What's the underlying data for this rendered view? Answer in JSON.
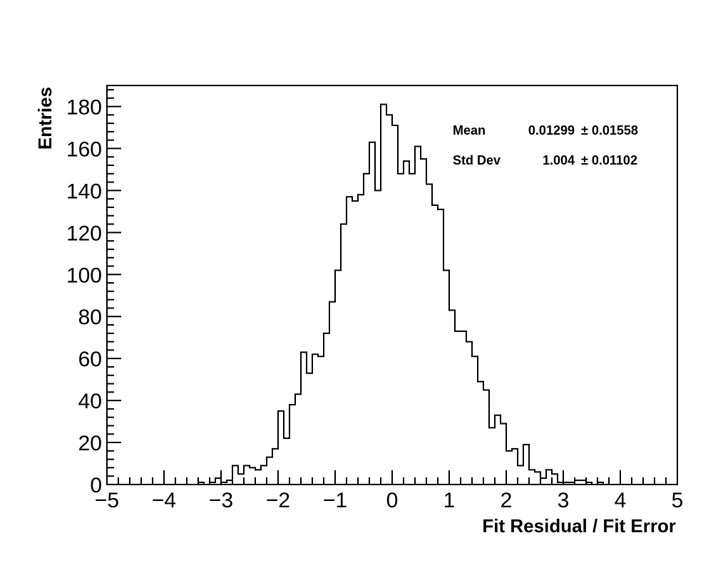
{
  "chart_data": {
    "type": "histogram",
    "xlabel": "Fit Residual / Fit Error",
    "ylabel": "Entries",
    "xlim": [
      -5,
      5
    ],
    "ylim": [
      0,
      190
    ],
    "x_ticks": [
      "−5",
      "−4",
      "−3",
      "−2",
      "−1",
      "0",
      "1",
      "2",
      "3",
      "4",
      "5"
    ],
    "y_ticks": [
      "0",
      "20",
      "40",
      "60",
      "80",
      "100",
      "120",
      "140",
      "160",
      "180"
    ],
    "bin_edges_start": -5,
    "bin_width": 0.1,
    "values": [
      0,
      0,
      0,
      0,
      0,
      0,
      0,
      0,
      0,
      0,
      0,
      0,
      0,
      0,
      0,
      0,
      1,
      0,
      1,
      3,
      1,
      2,
      9,
      5,
      9,
      8,
      7,
      9,
      13,
      17,
      35,
      22,
      38,
      43,
      63,
      53,
      62,
      61,
      72,
      87,
      102,
      124,
      137,
      135,
      138,
      148,
      163,
      140,
      181,
      176,
      171,
      148,
      154,
      148,
      161,
      155,
      143,
      133,
      131,
      102,
      83,
      73,
      73,
      68,
      61,
      49,
      45,
      27,
      33,
      29,
      16,
      17,
      9,
      19,
      7,
      6,
      3,
      7,
      5,
      1,
      1,
      1,
      2,
      2,
      1,
      0,
      1,
      0,
      0,
      0,
      0,
      0,
      0,
      0,
      0,
      0,
      0,
      0,
      0,
      0
    ],
    "stats": {
      "mean_label": "Mean",
      "mean_value": "0.01299",
      "mean_error": "± 0.01558",
      "std_label": "Std Dev",
      "std_value": "1.004",
      "std_error": "± 0.01102"
    }
  }
}
